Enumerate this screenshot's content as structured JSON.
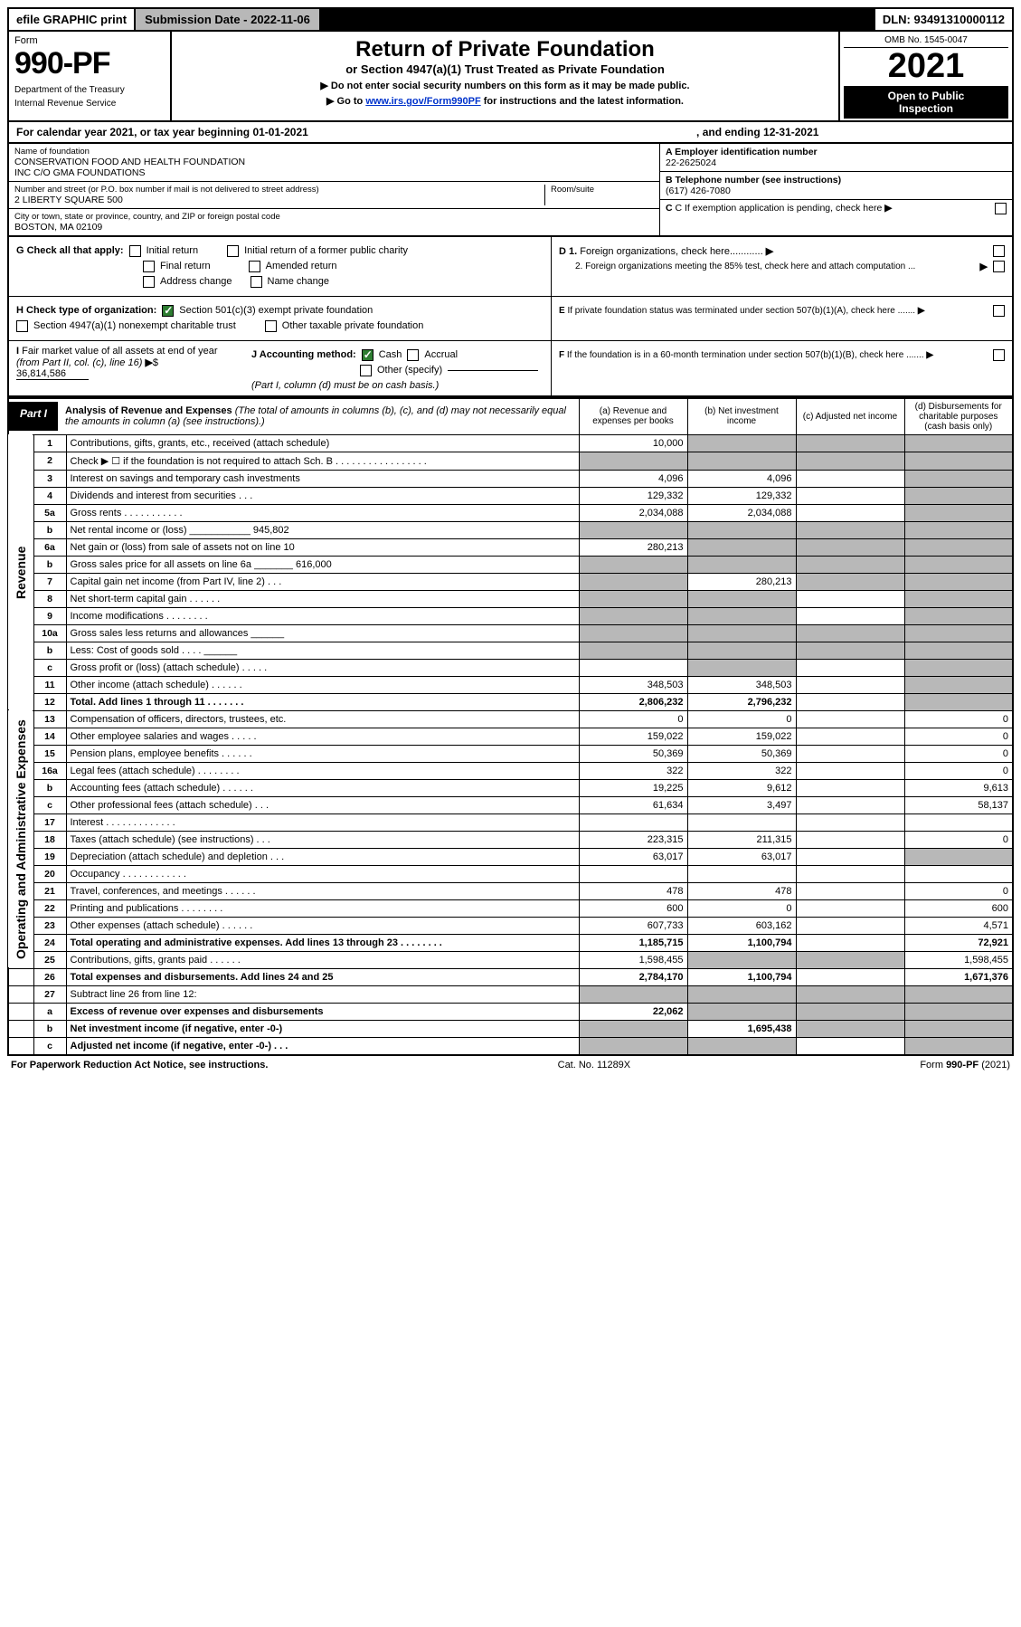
{
  "topbar": {
    "efile": "efile GRAPHIC print",
    "subdate_label": "Submission Date - 2022-11-06",
    "dln": "DLN: 93491310000112"
  },
  "header": {
    "form_word": "Form",
    "form_num": "990-PF",
    "dept1": "Department of the Treasury",
    "dept2": "Internal Revenue Service",
    "title": "Return of Private Foundation",
    "subtitle": "or Section 4947(a)(1) Trust Treated as Private Foundation",
    "note1": "▶ Do not enter social security numbers on this form as it may be made public.",
    "note2_prefix": "▶ Go to ",
    "note2_link": "www.irs.gov/Form990PF",
    "note2_suffix": " for instructions and the latest information.",
    "omb": "OMB No. 1545-0047",
    "year": "2021",
    "open1": "Open to Public",
    "open2": "Inspection"
  },
  "cal": {
    "left": "For calendar year 2021, or tax year beginning 01-01-2021",
    "right": ", and ending 12-31-2021"
  },
  "info": {
    "name_lbl": "Name of foundation",
    "name1": "CONSERVATION FOOD AND HEALTH FOUNDATION",
    "name2": "INC C/O GMA FOUNDATIONS",
    "addr_lbl": "Number and street (or P.O. box number if mail is not delivered to street address)",
    "addr": "2 LIBERTY SQUARE 500",
    "room_lbl": "Room/suite",
    "city_lbl": "City or town, state or province, country, and ZIP or foreign postal code",
    "city": "BOSTON, MA  02109",
    "A_lbl": "A Employer identification number",
    "A_val": "22-2625024",
    "B_lbl": "B Telephone number (see instructions)",
    "B_val": "(617) 426-7080",
    "C_lbl": "C If exemption application is pending, check here",
    "D1_lbl": "D 1. Foreign organizations, check here............",
    "D2_lbl": "2. Foreign organizations meeting the 85% test, check here and attach computation ...",
    "E_lbl": "E If private foundation status was terminated under section 507(b)(1)(A), check here .......",
    "F_lbl": "F If the foundation is in a 60-month termination under section 507(b)(1)(B), check here .......",
    "G_lbl": "G Check all that apply:",
    "G_initial": "Initial return",
    "G_initial_pc": "Initial return of a former public charity",
    "G_final": "Final return",
    "G_amended": "Amended return",
    "G_addrchg": "Address change",
    "G_namechg": "Name change",
    "H_lbl": "H Check type of organization:",
    "H_501c3": "Section 501(c)(3) exempt private foundation",
    "H_4947": "Section 4947(a)(1) nonexempt charitable trust",
    "H_other": "Other taxable private foundation",
    "I_lbl": "I Fair market value of all assets at end of year (from Part II, col. (c), line 16)",
    "I_val": "36,814,586",
    "J_lbl": "J Accounting method:",
    "J_cash": "Cash",
    "J_accrual": "Accrual",
    "J_other": "Other (specify)",
    "J_note": "(Part I, column (d) must be on cash basis.)"
  },
  "part1": {
    "label": "Part I",
    "title": "Analysis of Revenue and Expenses",
    "title_note": "(The total of amounts in columns (b), (c), and (d) may not necessarily equal the amounts in column (a) (see instructions).)",
    "col_a": "(a) Revenue and expenses per books",
    "col_b": "(b) Net investment income",
    "col_c": "(c) Adjusted net income",
    "col_d": "(d) Disbursements for charitable purposes (cash basis only)",
    "side_rev": "Revenue",
    "side_exp": "Operating and Administrative Expenses"
  },
  "rows": [
    {
      "n": "1",
      "desc": "Contributions, gifts, grants, etc., received (attach schedule)",
      "a": "10,000",
      "b": "",
      "c": "",
      "d": "",
      "grey_b": true,
      "grey_c": true,
      "grey_d": true
    },
    {
      "n": "2",
      "desc": "Check ▶ ☐ if the foundation is not required to attach Sch. B . . . . . . . . . . . . . . . . .",
      "a": "",
      "b": "",
      "c": "",
      "d": "",
      "grey_a": true,
      "grey_b": true,
      "grey_c": true,
      "grey_d": true
    },
    {
      "n": "3",
      "desc": "Interest on savings and temporary cash investments",
      "a": "4,096",
      "b": "4,096",
      "c": "",
      "d": "",
      "grey_d": true
    },
    {
      "n": "4",
      "desc": "Dividends and interest from securities   .   .   .",
      "a": "129,332",
      "b": "129,332",
      "c": "",
      "d": "",
      "grey_d": true
    },
    {
      "n": "5a",
      "desc": "Gross rents   .   .   .   .   .   .   .   .   .   .   .",
      "a": "2,034,088",
      "b": "2,034,088",
      "c": "",
      "d": "",
      "grey_d": true
    },
    {
      "n": "b",
      "desc": "Net rental income or (loss) ___________ 945,802",
      "a": "",
      "b": "",
      "c": "",
      "d": "",
      "grey_a": true,
      "grey_b": true,
      "grey_c": true,
      "grey_d": true
    },
    {
      "n": "6a",
      "desc": "Net gain or (loss) from sale of assets not on line 10",
      "a": "280,213",
      "b": "",
      "c": "",
      "d": "",
      "grey_b": true,
      "grey_c": true,
      "grey_d": true
    },
    {
      "n": "b",
      "desc": "Gross sales price for all assets on line 6a _______ 616,000",
      "a": "",
      "b": "",
      "c": "",
      "d": "",
      "grey_a": true,
      "grey_b": true,
      "grey_c": true,
      "grey_d": true
    },
    {
      "n": "7",
      "desc": "Capital gain net income (from Part IV, line 2)   .   .   .",
      "a": "",
      "b": "280,213",
      "c": "",
      "d": "",
      "grey_a": true,
      "grey_c": true,
      "grey_d": true
    },
    {
      "n": "8",
      "desc": "Net short-term capital gain   .   .   .   .   .   .",
      "a": "",
      "b": "",
      "c": "",
      "d": "",
      "grey_a": true,
      "grey_b": true,
      "grey_d": true
    },
    {
      "n": "9",
      "desc": "Income modifications   .   .   .   .   .   .   .   .",
      "a": "",
      "b": "",
      "c": "",
      "d": "",
      "grey_a": true,
      "grey_b": true,
      "grey_d": true
    },
    {
      "n": "10a",
      "desc": "Gross sales less returns and allowances  ______",
      "a": "",
      "b": "",
      "c": "",
      "d": "",
      "grey_a": true,
      "grey_b": true,
      "grey_c": true,
      "grey_d": true
    },
    {
      "n": "b",
      "desc": "Less: Cost of goods sold   .   .   .   .   ______",
      "a": "",
      "b": "",
      "c": "",
      "d": "",
      "grey_a": true,
      "grey_b": true,
      "grey_c": true,
      "grey_d": true
    },
    {
      "n": "c",
      "desc": "Gross profit or (loss) (attach schedule)   .   .   .   .   .",
      "a": "",
      "b": "",
      "c": "",
      "d": "",
      "grey_b": true,
      "grey_d": true
    },
    {
      "n": "11",
      "desc": "Other income (attach schedule)   .   .   .   .   .   .",
      "a": "348,503",
      "b": "348,503",
      "c": "",
      "d": "",
      "grey_d": true
    },
    {
      "n": "12",
      "desc": "Total. Add lines 1 through 11   .   .   .   .   .   .   .",
      "a": "2,806,232",
      "b": "2,796,232",
      "c": "",
      "d": "",
      "bold": true,
      "grey_d": true
    },
    {
      "n": "13",
      "desc": "Compensation of officers, directors, trustees, etc.",
      "a": "0",
      "b": "0",
      "c": "",
      "d": "0"
    },
    {
      "n": "14",
      "desc": "Other employee salaries and wages   .   .   .   .   .",
      "a": "159,022",
      "b": "159,022",
      "c": "",
      "d": "0"
    },
    {
      "n": "15",
      "desc": "Pension plans, employee benefits   .   .   .   .   .   .",
      "a": "50,369",
      "b": "50,369",
      "c": "",
      "d": "0"
    },
    {
      "n": "16a",
      "desc": "Legal fees (attach schedule)   .   .   .   .   .   .   .   .",
      "a": "322",
      "b": "322",
      "c": "",
      "d": "0"
    },
    {
      "n": "b",
      "desc": "Accounting fees (attach schedule)   .   .   .   .   .   .",
      "a": "19,225",
      "b": "9,612",
      "c": "",
      "d": "9,613"
    },
    {
      "n": "c",
      "desc": "Other professional fees (attach schedule)   .   .   .",
      "a": "61,634",
      "b": "3,497",
      "c": "",
      "d": "58,137"
    },
    {
      "n": "17",
      "desc": "Interest   .   .   .   .   .   .   .   .   .   .   .   .   .",
      "a": "",
      "b": "",
      "c": "",
      "d": ""
    },
    {
      "n": "18",
      "desc": "Taxes (attach schedule) (see instructions)   .   .   .",
      "a": "223,315",
      "b": "211,315",
      "c": "",
      "d": "0"
    },
    {
      "n": "19",
      "desc": "Depreciation (attach schedule) and depletion   .   .   .",
      "a": "63,017",
      "b": "63,017",
      "c": "",
      "d": "",
      "grey_d": true
    },
    {
      "n": "20",
      "desc": "Occupancy   .   .   .   .   .   .   .   .   .   .   .   .",
      "a": "",
      "b": "",
      "c": "",
      "d": ""
    },
    {
      "n": "21",
      "desc": "Travel, conferences, and meetings   .   .   .   .   .   .",
      "a": "478",
      "b": "478",
      "c": "",
      "d": "0"
    },
    {
      "n": "22",
      "desc": "Printing and publications   .   .   .   .   .   .   .   .",
      "a": "600",
      "b": "0",
      "c": "",
      "d": "600"
    },
    {
      "n": "23",
      "desc": "Other expenses (attach schedule)   .   .   .   .   .   .",
      "a": "607,733",
      "b": "603,162",
      "c": "",
      "d": "4,571"
    },
    {
      "n": "24",
      "desc": "Total operating and administrative expenses. Add lines 13 through 23   .   .   .   .   .   .   .   .",
      "a": "1,185,715",
      "b": "1,100,794",
      "c": "",
      "d": "72,921",
      "bold": true
    },
    {
      "n": "25",
      "desc": "Contributions, gifts, grants paid   .   .   .   .   .   .",
      "a": "1,598,455",
      "b": "",
      "c": "",
      "d": "1,598,455",
      "grey_b": true,
      "grey_c": true
    },
    {
      "n": "26",
      "desc": "Total expenses and disbursements. Add lines 24 and 25",
      "a": "2,784,170",
      "b": "1,100,794",
      "c": "",
      "d": "1,671,376",
      "bold": true
    },
    {
      "n": "27",
      "desc": "Subtract line 26 from line 12:",
      "a": "",
      "b": "",
      "c": "",
      "d": "",
      "grey_a": true,
      "grey_b": true,
      "grey_c": true,
      "grey_d": true
    },
    {
      "n": "a",
      "desc": "Excess of revenue over expenses and disbursements",
      "a": "22,062",
      "b": "",
      "c": "",
      "d": "",
      "bold": true,
      "grey_b": true,
      "grey_c": true,
      "grey_d": true
    },
    {
      "n": "b",
      "desc": "Net investment income (if negative, enter -0-)",
      "a": "",
      "b": "1,695,438",
      "c": "",
      "d": "",
      "bold": true,
      "grey_a": true,
      "grey_c": true,
      "grey_d": true
    },
    {
      "n": "c",
      "desc": "Adjusted net income (if negative, enter -0-)   .   .   .",
      "a": "",
      "b": "",
      "c": "",
      "d": "",
      "bold": true,
      "grey_a": true,
      "grey_b": true,
      "grey_d": true
    }
  ],
  "rowspans": {
    "rev_start": 0,
    "rev_count": 16,
    "exp_start": 16,
    "exp_count": 15
  },
  "footer": {
    "left": "For Paperwork Reduction Act Notice, see instructions.",
    "mid": "Cat. No. 11289X",
    "right": "Form 990-PF (2021)"
  },
  "colors": {
    "grey": "#b8b8b8",
    "link": "#0033cc",
    "black": "#000000"
  }
}
